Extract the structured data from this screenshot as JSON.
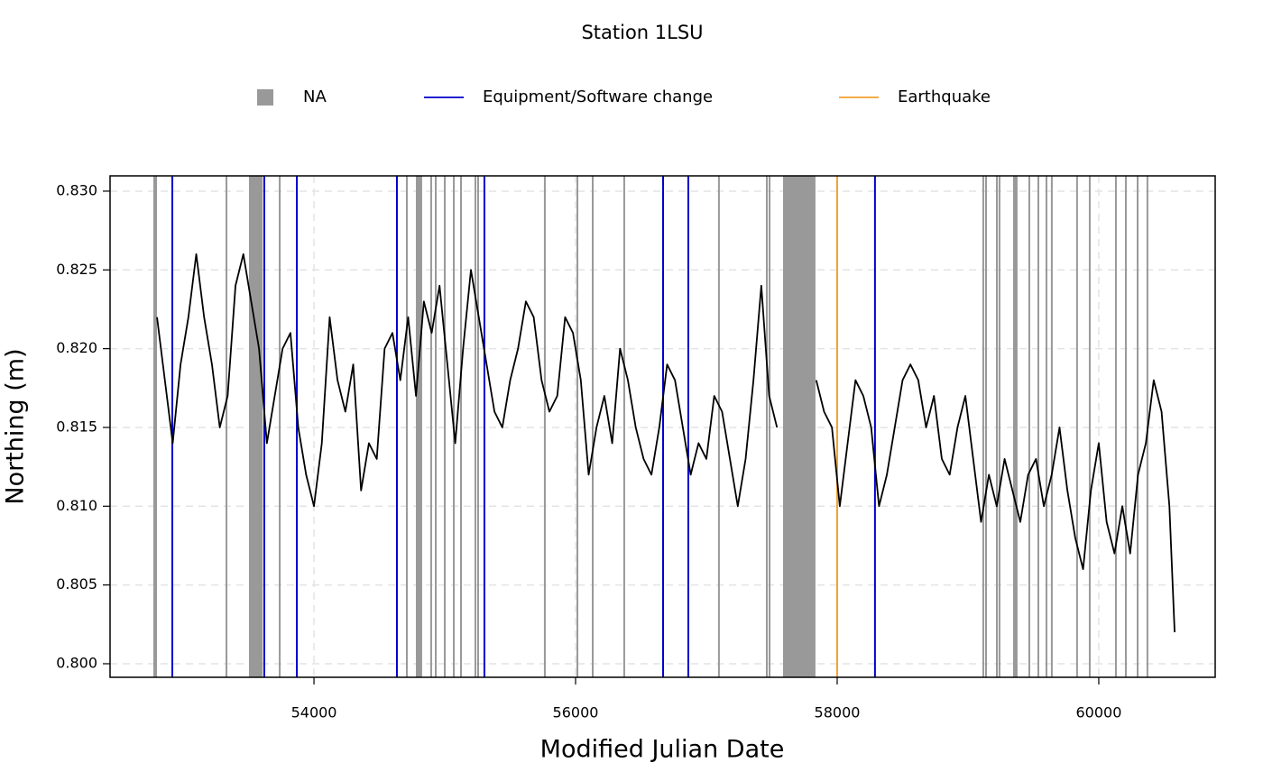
{
  "chart_data": {
    "type": "line",
    "title": "Station 1LSU",
    "xlabel": "Modified Julian Date",
    "ylabel": "Northing (m)",
    "color": "#000000",
    "xlim": [
      52441,
      60890
    ],
    "ylim": [
      0.79914,
      0.83097
    ],
    "xticks": [
      54000,
      56000,
      58000,
      60000
    ],
    "yticks": [
      {
        "value": 0.8,
        "label": "0.800"
      },
      0.805,
      {
        "value": 0.81,
        "label": "0.810"
      },
      0.815,
      {
        "value": 0.82,
        "label": "0.820"
      },
      0.825,
      {
        "value": 0.83,
        "label": "0.830"
      }
    ],
    "grid": true,
    "legend_position": "top",
    "x": [
      52800,
      52860,
      52920,
      52980,
      53040,
      53100,
      53160,
      53220,
      53280,
      53340,
      53400,
      53460,
      53520,
      53580,
      53640,
      53700,
      53760,
      53820,
      53880,
      53940,
      54000,
      54060,
      54120,
      54180,
      54240,
      54300,
      54360,
      54420,
      54480,
      54540,
      54600,
      54660,
      54720,
      54780,
      54840,
      54900,
      54960,
      55020,
      55080,
      55140,
      55200,
      55260,
      55320,
      55380,
      55440,
      55500,
      55560,
      55620,
      55680,
      55740,
      55800,
      55860,
      55920,
      55980,
      56040,
      56100,
      56160,
      56220,
      56280,
      56340,
      56400,
      56460,
      56520,
      56580,
      56640,
      56700,
      56760,
      56820,
      56880,
      56940,
      57000,
      57060,
      57120,
      57180,
      57240,
      57300,
      57360,
      57420,
      57480,
      57540,
      57600,
      57840,
      57900,
      57960,
      58020,
      58080,
      58140,
      58200,
      58260,
      58320,
      58380,
      58440,
      58500,
      58560,
      58620,
      58680,
      58740,
      58800,
      58860,
      58920,
      58980,
      59040,
      59100,
      59160,
      59220,
      59280,
      59340,
      59400,
      59460,
      59520,
      59580,
      59640,
      59700,
      59760,
      59820,
      59880,
      59940,
      60000,
      60060,
      60120,
      60180,
      60240,
      60300,
      60360,
      60420,
      60480,
      60540,
      60580
    ],
    "values": [
      0.822,
      0.818,
      0.814,
      0.819,
      0.822,
      0.826,
      0.822,
      0.819,
      0.815,
      0.817,
      0.824,
      0.826,
      0.823,
      0.82,
      0.814,
      0.817,
      0.82,
      0.821,
      0.815,
      0.812,
      0.81,
      0.814,
      0.822,
      0.818,
      0.816,
      0.819,
      0.811,
      0.814,
      0.813,
      0.82,
      0.821,
      0.818,
      0.822,
      0.817,
      0.823,
      0.821,
      0.824,
      0.819,
      0.814,
      0.82,
      0.825,
      0.822,
      0.819,
      0.816,
      0.815,
      0.818,
      0.82,
      0.823,
      0.822,
      0.818,
      0.816,
      0.817,
      0.822,
      0.821,
      0.818,
      0.812,
      0.815,
      0.817,
      0.814,
      0.82,
      0.818,
      0.815,
      0.813,
      0.812,
      0.815,
      0.819,
      0.818,
      0.815,
      0.812,
      0.814,
      0.813,
      0.817,
      0.816,
      0.813,
      0.81,
      0.813,
      0.818,
      0.824,
      0.817,
      0.815,
      null,
      0.818,
      0.816,
      0.815,
      0.81,
      0.814,
      0.818,
      0.817,
      0.815,
      0.81,
      0.812,
      0.815,
      0.818,
      0.819,
      0.818,
      0.815,
      0.817,
      0.813,
      0.812,
      0.815,
      0.817,
      0.813,
      0.809,
      0.812,
      0.81,
      0.813,
      0.811,
      0.809,
      0.812,
      0.813,
      0.81,
      0.812,
      0.815,
      0.811,
      0.808,
      0.806,
      0.811,
      0.814,
      0.809,
      0.807,
      0.81,
      0.807,
      0.812,
      0.814,
      0.818,
      0.816,
      0.81,
      0.802
    ],
    "events": [
      {
        "name": "NA",
        "color": "#999999",
        "kind": "span",
        "dates": [
          [
            52772,
            52800
          ],
          53331,
          [
            53503,
            53607
          ],
          53738,
          54710,
          [
            54779,
            54827
          ],
          54896,
          54931,
          55000,
          55069,
          55124,
          55234,
          55255,
          55765,
          56014,
          56131,
          56372,
          57096,
          57462,
          57483,
          [
            57586,
            57834
          ],
          59117,
          59138,
          59221,
          59241,
          [
            59345,
            59379
          ],
          59469,
          59538,
          59600,
          59641,
          59834,
          59931,
          60131,
          60207,
          60297,
          60372
        ]
      },
      {
        "name": "Equipment/Software change",
        "color": "#0000cc",
        "kind": "line",
        "dates": [
          52917,
          53620,
          53869,
          54634,
          55303,
          56669,
          56862,
          58289
        ]
      },
      {
        "name": "Earthquake",
        "color": "#f5a030",
        "kind": "line",
        "dates": [
          58000
        ]
      }
    ]
  }
}
